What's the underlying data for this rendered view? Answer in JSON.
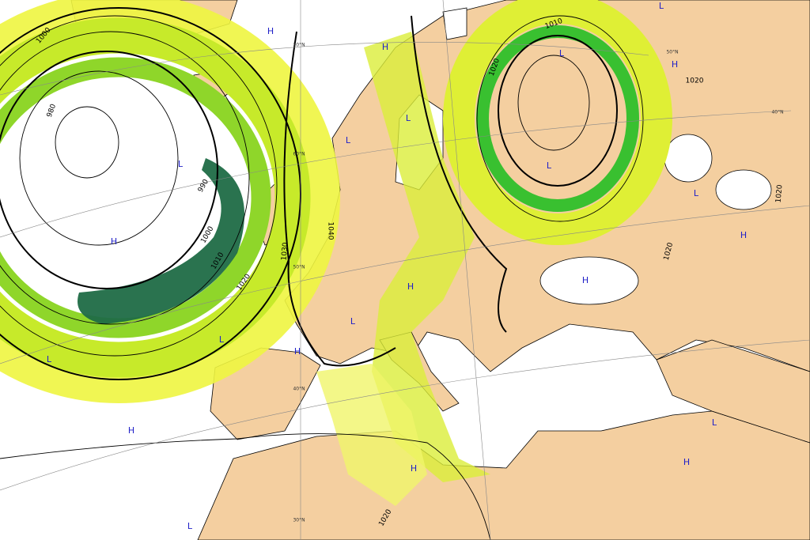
{
  "map": {
    "isobar_labels": [
      "1000",
      "980",
      "990",
      "1000",
      "1010",
      "1020",
      "1030",
      "1040",
      "1010",
      "1020",
      "1020",
      "1020",
      "1020",
      "1020"
    ],
    "pressure_centers": [
      "H",
      "H",
      "L",
      "L",
      "L",
      "L",
      "H",
      "H",
      "H",
      "H",
      "H",
      "L",
      "L",
      "H",
      "L",
      "H",
      "L",
      "H",
      "H",
      "L",
      "L",
      "L",
      "L"
    ],
    "latitude_labels": [
      "70°N",
      "60°N",
      "50°N",
      "40°N",
      "30°N",
      "50°N",
      "40°N"
    ]
  }
}
